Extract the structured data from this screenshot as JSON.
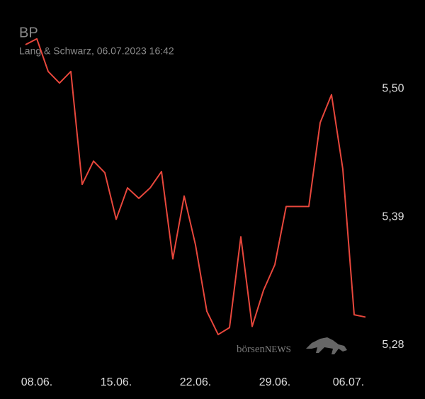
{
  "chart_data": {
    "type": "line",
    "title": "BP",
    "subtitle": "Lang & Schwarz, 06.07.2023 16:42",
    "categories": [
      null,
      "08.06.",
      null,
      null,
      null,
      null,
      null,
      null,
      "15.06.",
      null,
      null,
      null,
      null,
      null,
      null,
      "22.06.",
      null,
      null,
      null,
      null,
      null,
      null,
      "29.06.",
      null,
      null,
      null,
      null,
      null,
      null,
      "06.07.",
      null
    ],
    "series": [
      {
        "name": "BP",
        "color": "#e8473c",
        "values": [
          5.538,
          5.543,
          5.515,
          5.505,
          5.515,
          5.418,
          5.438,
          5.428,
          5.388,
          5.415,
          5.406,
          5.415,
          5.429,
          5.354,
          5.408,
          5.366,
          5.309,
          5.289,
          5.295,
          5.373,
          5.296,
          5.327,
          5.349,
          5.399,
          5.399,
          5.399,
          5.471,
          5.495,
          5.431,
          5.306,
          5.304
        ]
      }
    ],
    "ylim": [
      5.272,
      5.552
    ],
    "yticks": [
      {
        "value": 5.5,
        "label": "5,50"
      },
      {
        "value": 5.39,
        "label": "5,39"
      },
      {
        "value": 5.28,
        "label": "5,28"
      }
    ],
    "grid": false,
    "watermark": {
      "left": "börsen",
      "right": "NEWS"
    }
  }
}
